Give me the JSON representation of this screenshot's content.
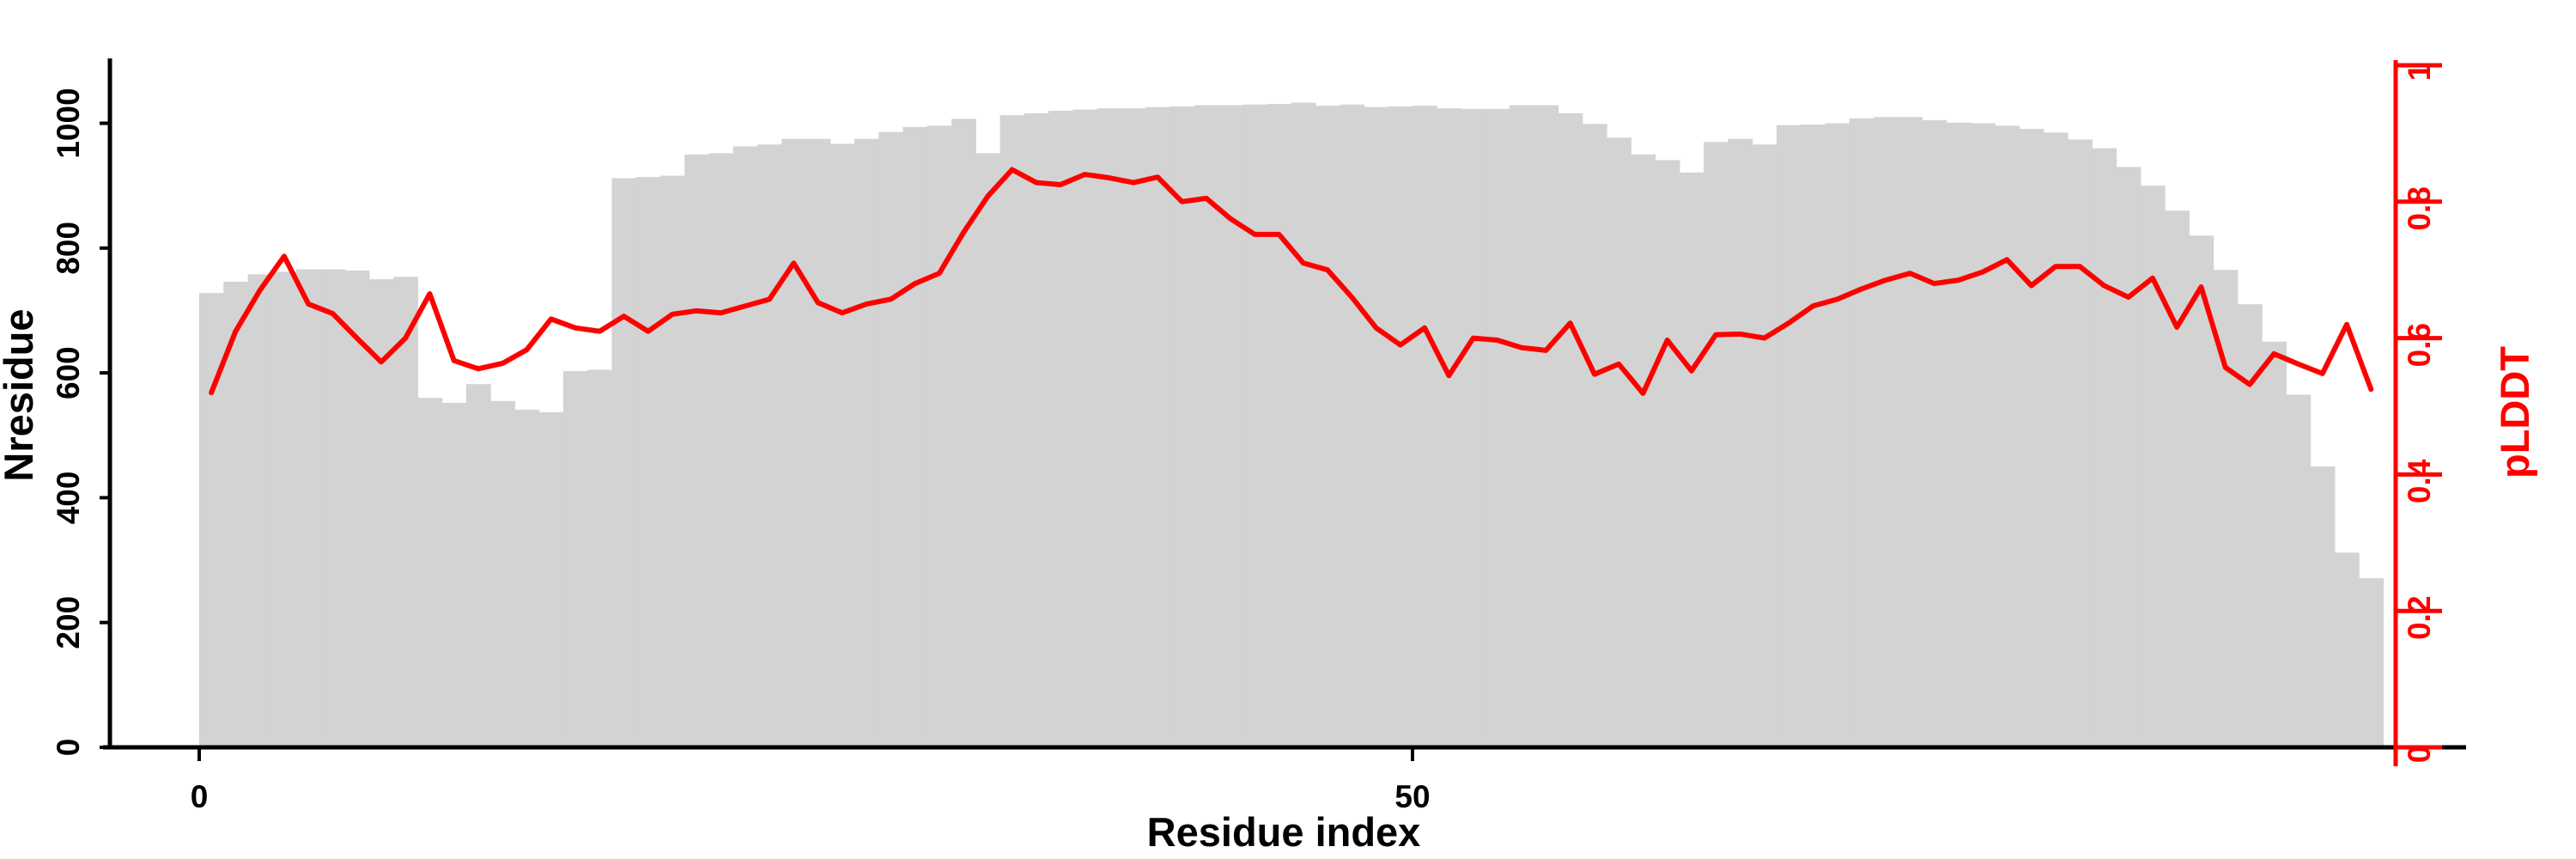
{
  "chart_data": {
    "type": "bar",
    "subtype": "bar-with-secondary-line",
    "title": "",
    "xlabel": "Residue index",
    "ylabel_left": "Nresidue",
    "ylabel_right": "pLDDT",
    "x": {
      "start": 0,
      "step": 1,
      "n": 90,
      "meaning": "residue index"
    },
    "x_ticks": [
      0,
      50
    ],
    "y_left_ticks": [
      0,
      200,
      400,
      600,
      800,
      1000
    ],
    "y_right_ticks": [
      0,
      0.2,
      0.4,
      0.6,
      0.8,
      1
    ],
    "ylim_left": [
      0,
      1100
    ],
    "ylim_right": [
      0,
      1
    ],
    "grid": false,
    "legend_position": "none",
    "bar_color": "#d3d3d3",
    "line_color": "#ff0000",
    "axis_color": "#000000",
    "right_axis_color": "#ff0000",
    "series": [
      {
        "name": "Nresidue",
        "type": "bar",
        "axis": "left",
        "values": [
          728,
          746,
          758,
          762,
          766,
          766,
          764,
          750,
          754,
          560,
          552,
          582,
          555,
          541,
          537,
          603,
          605,
          912,
          914,
          916,
          950,
          952,
          963,
          966,
          975,
          975,
          967,
          975,
          986,
          994,
          996,
          1007,
          952,
          1013,
          1016,
          1020,
          1022,
          1024,
          1024,
          1026,
          1027,
          1029,
          1029,
          1030,
          1031,
          1033,
          1028,
          1030,
          1026,
          1027,
          1028,
          1024,
          1023,
          1023,
          1029,
          1029,
          1016,
          999,
          977,
          950,
          941,
          921,
          970,
          975,
          966,
          997,
          998,
          1000,
          1008,
          1010,
          1010,
          1005,
          1001,
          1000,
          996,
          991,
          985,
          974,
          960,
          930,
          900,
          860,
          820,
          765,
          710,
          650,
          565,
          450,
          312,
          271
        ]
      },
      {
        "name": "pLDDT",
        "type": "line",
        "axis": "right",
        "values": [
          0.52,
          0.61,
          0.67,
          0.72,
          0.65,
          0.636,
          0.6,
          0.565,
          0.6,
          0.665,
          0.567,
          0.555,
          0.563,
          0.583,
          0.628,
          0.615,
          0.61,
          0.632,
          0.61,
          0.635,
          0.64,
          0.637,
          0.647,
          0.657,
          0.71,
          0.652,
          0.637,
          0.65,
          0.657,
          0.68,
          0.695,
          0.755,
          0.808,
          0.847,
          0.828,
          0.825,
          0.84,
          0.835,
          0.828,
          0.836,
          0.8,
          0.805,
          0.775,
          0.752,
          0.752,
          0.71,
          0.7,
          0.66,
          0.615,
          0.59,
          0.615,
          0.545,
          0.6,
          0.597,
          0.586,
          0.582,
          0.622,
          0.547,
          0.562,
          0.519,
          0.597,
          0.552,
          0.605,
          0.606,
          0.6,
          0.622,
          0.647,
          0.657,
          0.672,
          0.685,
          0.695,
          0.68,
          0.685,
          0.697,
          0.715,
          0.677,
          0.705,
          0.705,
          0.677,
          0.66,
          0.688,
          0.616,
          0.675,
          0.557,
          0.532,
          0.577,
          0.562,
          0.548,
          0.62,
          0.525
        ]
      }
    ]
  }
}
